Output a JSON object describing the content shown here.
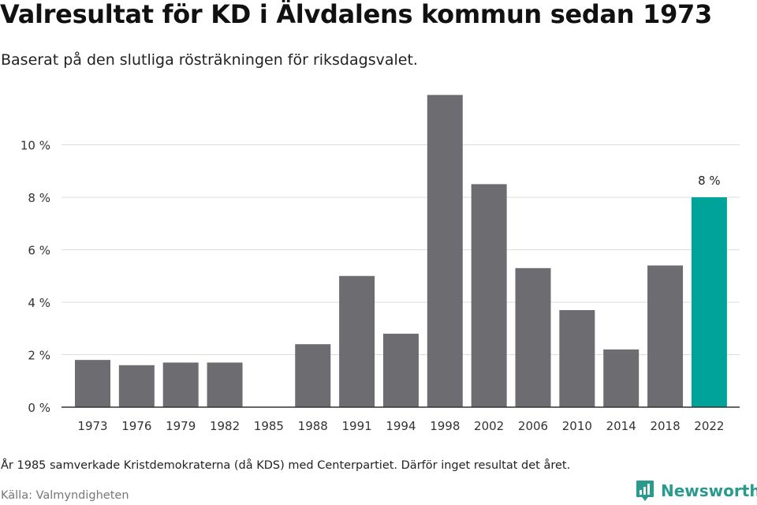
{
  "header": {
    "title": "Valresultat för KD i Älvdalens kommun sedan 1973",
    "subtitle": "Baserat på den slutliga rösträkningen för riksdagsvalet."
  },
  "chart_data": {
    "type": "bar",
    "title": "Valresultat för KD i Älvdalens kommun sedan 1973",
    "subtitle": "Baserat på den slutliga rösträkningen för riksdagsvalet.",
    "xlabel": "",
    "ylabel": "",
    "categories": [
      "1973",
      "1976",
      "1979",
      "1982",
      "1985",
      "1988",
      "1991",
      "1994",
      "1998",
      "2002",
      "2006",
      "2010",
      "2014",
      "2018",
      "2022"
    ],
    "values": [
      1.8,
      1.6,
      1.7,
      1.7,
      null,
      2.4,
      5.0,
      2.8,
      11.9,
      8.5,
      5.3,
      3.7,
      2.2,
      5.4,
      8.0
    ],
    "ylim": [
      0,
      12
    ],
    "yticks": [
      0,
      2,
      4,
      6,
      8,
      10
    ],
    "ytick_suffix": " %",
    "grid": true,
    "highlight": {
      "category": "2022",
      "label": "8 %"
    },
    "colors": {
      "bar": "#6d6c71",
      "highlight": "#00a39a",
      "grid": "#dddddd",
      "axis": "#333333",
      "tick_text": "#333333"
    }
  },
  "footer": {
    "note": "År 1985 samverkade Kristdemokraterna (då KDS) med Centerpartiet. Därför inget resultat det året.",
    "source": "Källa: Valmyndigheten",
    "brand": "Newsworthy",
    "brand_color": "#2a9a8f",
    "brand_icon": "newsworthy-logo-icon"
  }
}
